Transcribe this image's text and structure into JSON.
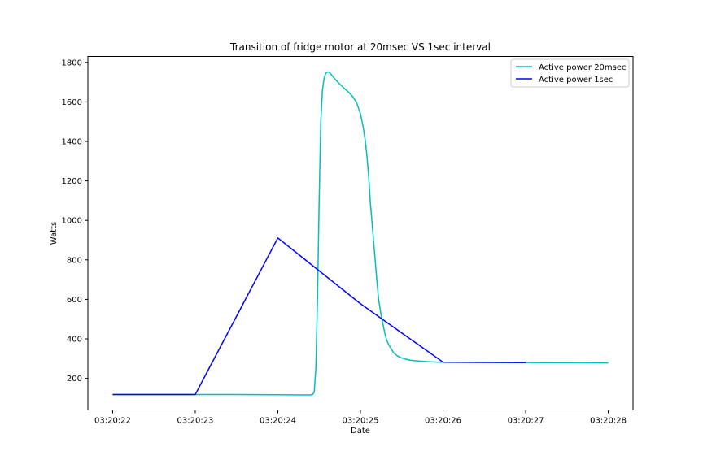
{
  "chart_data": {
    "type": "line",
    "title": "Transition of fridge motor at 20msec VS 1sec interval",
    "xlabel": "Date",
    "ylabel": "Watts",
    "x_tick_labels": [
      "03:20:22",
      "03:20:23",
      "03:20:24",
      "03:20:25",
      "03:20:26",
      "03:20:27",
      "03:20:28"
    ],
    "x_tick_values": [
      0,
      1,
      2,
      3,
      4,
      5,
      6
    ],
    "y_tick_values": [
      200,
      400,
      600,
      800,
      1000,
      1200,
      1400,
      1600,
      1800
    ],
    "xlim": [
      -0.3,
      6.3
    ],
    "ylim": [
      40,
      1830
    ],
    "legend_position": "top-right",
    "series": [
      {
        "name": "Active power 20msec",
        "color": "#00bfbf",
        "x": [
          0,
          1,
          1.5,
          2,
          2.3,
          2.35,
          2.4,
          2.42,
          2.44,
          2.46,
          2.48,
          2.5,
          2.52,
          2.54,
          2.56,
          2.58,
          2.6,
          2.62,
          2.64,
          2.66,
          2.7,
          2.75,
          2.8,
          2.85,
          2.9,
          2.95,
          3.0,
          3.03,
          3.06,
          3.08,
          3.1,
          3.12,
          3.15,
          3.18,
          3.2,
          3.22,
          3.25,
          3.28,
          3.3,
          3.32,
          3.35,
          3.38,
          3.4,
          3.45,
          3.5,
          3.55,
          3.6,
          3.7,
          3.8,
          3.9,
          4.0,
          4.5,
          5.0,
          5.5,
          6.0
        ],
        "values": [
          118,
          118,
          118,
          117,
          116,
          116,
          116,
          118,
          130,
          250,
          600,
          1100,
          1500,
          1660,
          1720,
          1745,
          1752,
          1750,
          1742,
          1732,
          1712,
          1690,
          1670,
          1652,
          1630,
          1600,
          1540,
          1480,
          1400,
          1320,
          1220,
          1090,
          940,
          790,
          690,
          600,
          520,
          460,
          420,
          390,
          365,
          345,
          330,
          313,
          303,
          297,
          292,
          288,
          285,
          283,
          282,
          281,
          280,
          279,
          278
        ]
      },
      {
        "name": "Active power 1sec",
        "color": "#0000ff",
        "x": [
          0,
          1,
          2,
          3,
          4,
          5
        ],
        "values": [
          118,
          118,
          911,
          578,
          282,
          280
        ]
      }
    ]
  }
}
